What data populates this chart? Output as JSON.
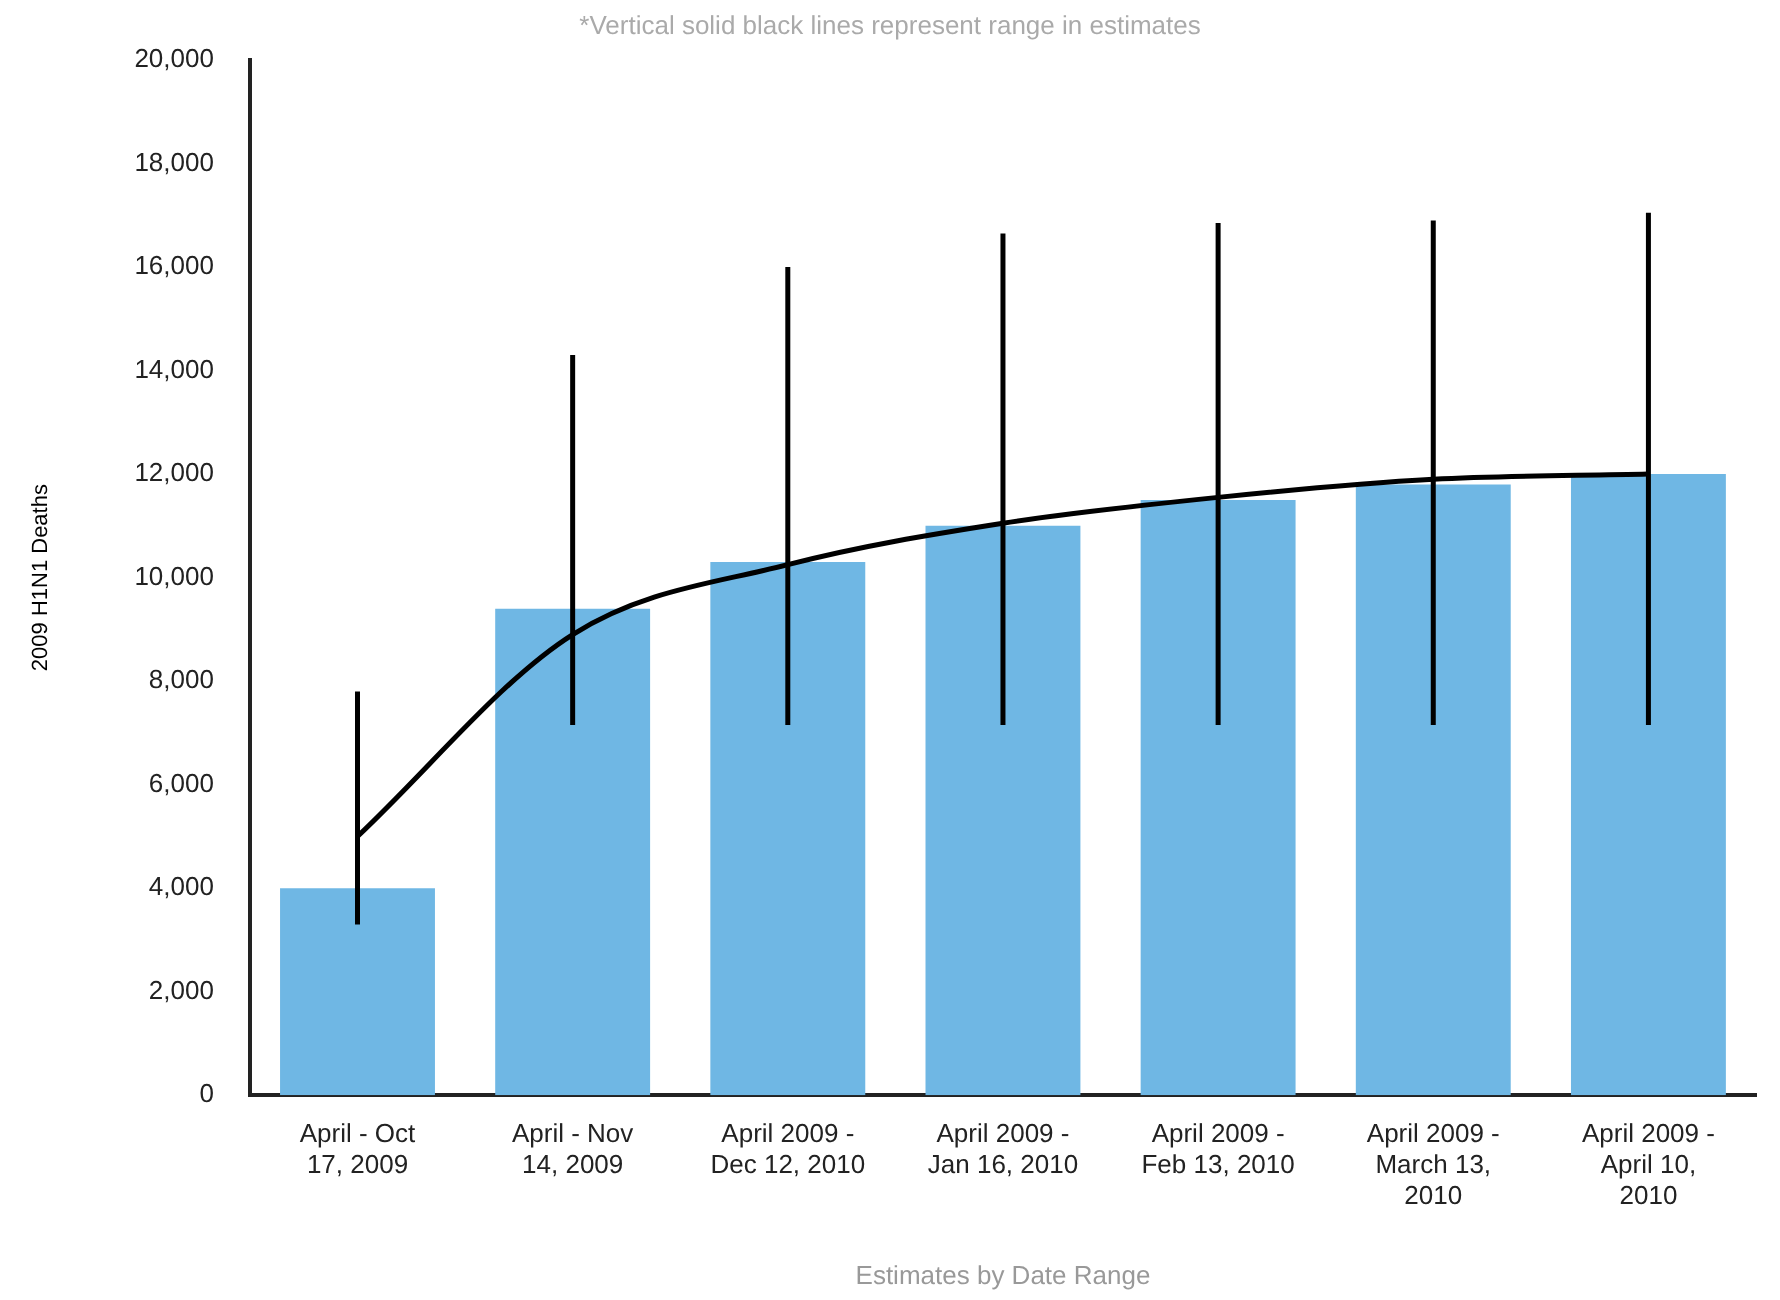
{
  "chart_data": {
    "type": "bar",
    "xlabel": "Estimates by Date Range",
    "ylabel": "2009 H1N1 Deaths",
    "annotations": [
      "*Vertical solid black lines represent range in estimates"
    ],
    "categories": [
      "April - Oct 17, 2009",
      "April - Nov 14, 2009",
      "April 2009 - Dec 12, 2010",
      "April 2009 - Jan 16, 2010",
      "April 2009 - Feb 13, 2010",
      "April 2009 - March 13, 2010",
      "April 2009 - April 10, 2010"
    ],
    "series": [
      {
        "color": "#6fb7e4",
        "values": [
          4000,
          9400,
          10300,
          11000,
          11500,
          11800,
          12000
        ],
        "errors": [
          [
            3300,
            7800
          ],
          [
            7150,
            14300
          ],
          [
            7150,
            16000
          ],
          [
            7150,
            16650
          ],
          [
            7150,
            16850
          ],
          [
            7150,
            16900
          ],
          [
            7150,
            17050
          ]
        ]
      },
      {
        "type": "line",
        "color": "#000000",
        "marker": "none",
        "values": [
          5000,
          8900,
          10250,
          11050,
          11550,
          11900,
          12000
        ]
      }
    ],
    "ylim": [
      0,
      20000
    ],
    "yticks": [
      0,
      {
        "value": 2000,
        "label": "2,000"
      },
      {
        "value": 4000,
        "label": "4,000"
      },
      {
        "value": 6000,
        "label": "6,000"
      },
      {
        "value": 8000,
        "label": "8,000"
      },
      {
        "value": 10000,
        "label": "10,000"
      },
      {
        "value": 12000,
        "label": "12,000"
      },
      {
        "value": 14000,
        "label": "14,000"
      },
      {
        "value": 16000,
        "label": "16,000"
      },
      {
        "value": 18000,
        "label": "18,000"
      },
      {
        "value": 20000,
        "label": "20,000"
      }
    ],
    "grid": false,
    "legend": false
  }
}
